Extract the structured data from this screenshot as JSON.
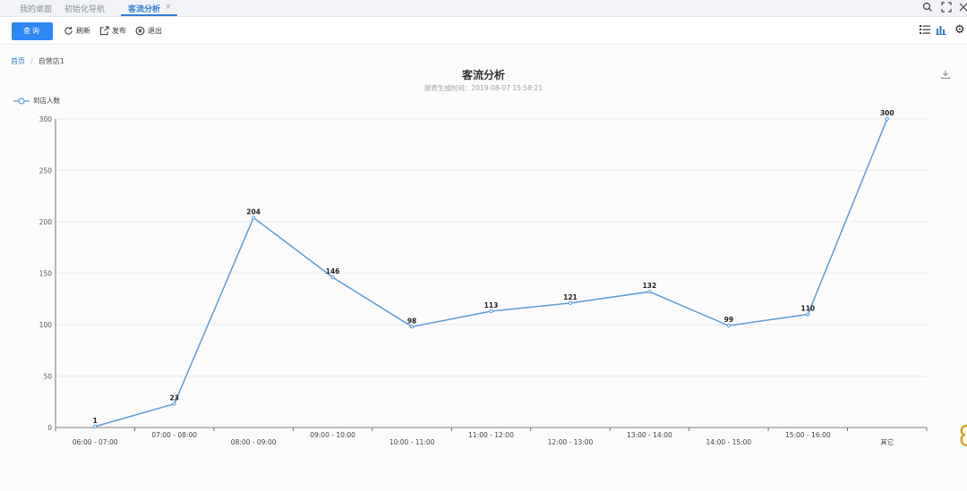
{
  "tabs": [
    {
      "label": "我的桌面",
      "active": false
    },
    {
      "label": "初始化导航",
      "active": false
    },
    {
      "label": "客流分析",
      "active": true
    }
  ],
  "tab_close": "×",
  "toolbar": {
    "query_label": "查询",
    "refresh_label": "刷新",
    "publish_label": "发布",
    "exit_label": "退出"
  },
  "breadcrumb": {
    "home": "首页",
    "separator": "/",
    "current": "自营店1"
  },
  "colors": {
    "accent": "#2f86f6",
    "line": "#5b9bd5",
    "grid": "#e4e6e9"
  },
  "chart_data": {
    "type": "line",
    "title": "客流分析",
    "subtitle": "报表生成时间：2019-08-07 15:58:21",
    "legend": [
      "到店人数"
    ],
    "legend_position": "top-left",
    "grid": true,
    "ylim": [
      0,
      300
    ],
    "yticks": [
      0,
      50,
      100,
      150,
      200,
      250,
      300
    ],
    "categories": [
      "06:00 - 07:00",
      "07:00 - 08:00",
      "08:00 - 09:00",
      "09:00 - 10:00",
      "10:00 - 11:00",
      "11:00 - 12:00",
      "12:00 - 13:00",
      "13:00 - 14:00",
      "14:00 - 15:00",
      "15:00 - 16:00",
      "其它"
    ],
    "series": [
      {
        "name": "到店人数",
        "values": [
          1,
          23,
          204,
          146,
          98,
          113,
          121,
          132,
          99,
          110,
          300
        ]
      }
    ]
  }
}
